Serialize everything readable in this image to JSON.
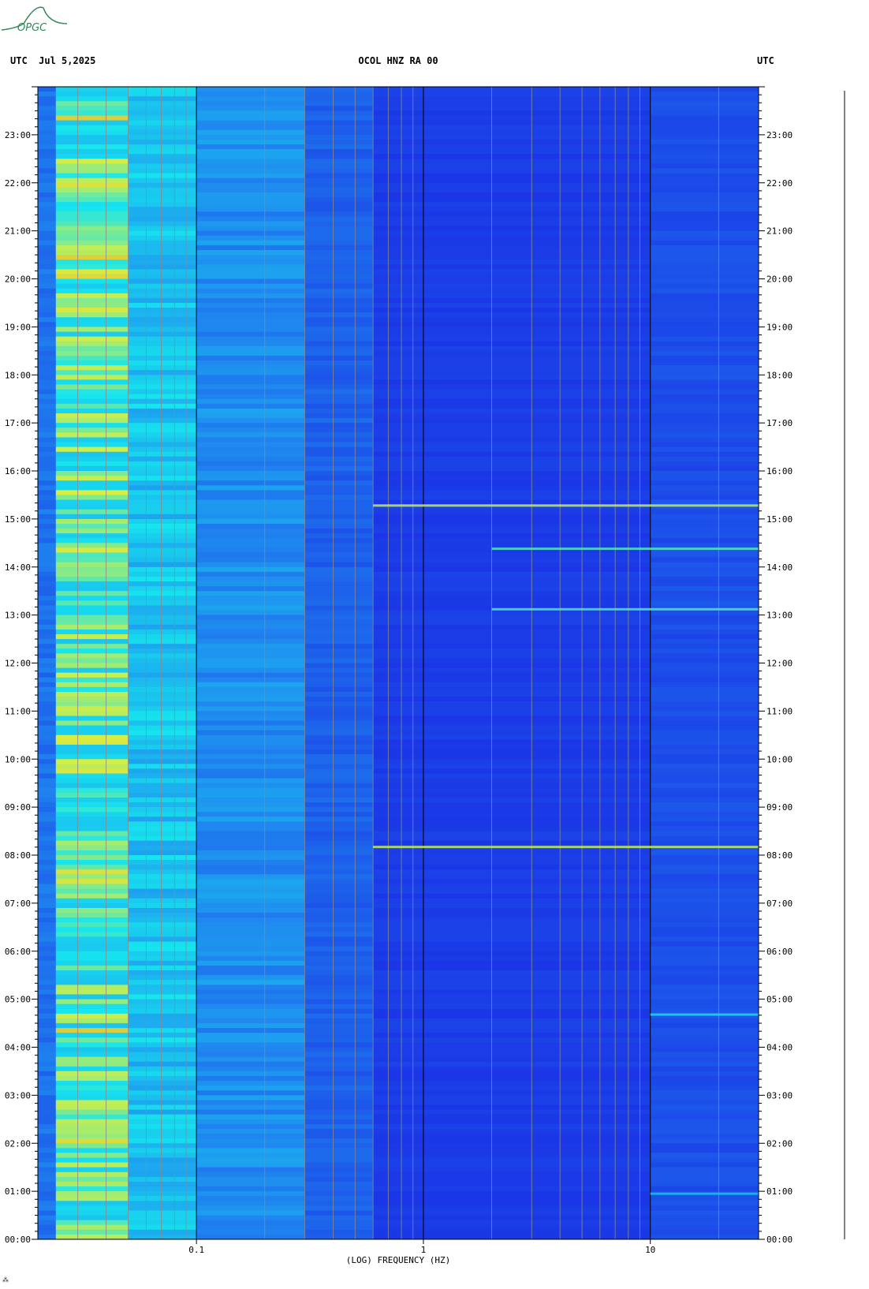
{
  "logo": {
    "text": "OPGC",
    "color": "#2e8b57"
  },
  "header": {
    "left": "UTC  Jul 5,2025",
    "center": "OCOL HNZ RA 00",
    "right": "UTC"
  },
  "colors": {
    "background_low": "#1a2fe6",
    "mid": "#1f88ef",
    "high": "#16e6ee",
    "peak": "#d8ee40",
    "hot": "#ee3a20"
  },
  "chart_data": {
    "type": "heatmap",
    "xlabel": "(LOG) FREQUENCY (HZ)",
    "x_scale": "log",
    "xlim_hz": [
      0.02,
      30
    ],
    "xticks": [
      {
        "value": 0.1,
        "label": "0.1"
      },
      {
        "value": 1,
        "label": "1"
      },
      {
        "value": 10,
        "label": "10"
      }
    ],
    "x_gridlines_hz": [
      0.02,
      0.03,
      0.04,
      0.05,
      0.06,
      0.07,
      0.08,
      0.09,
      0.1,
      0.2,
      0.3,
      0.4,
      0.5,
      0.6,
      0.7,
      0.8,
      0.9,
      1,
      2,
      3,
      4,
      5,
      6,
      7,
      8,
      9,
      10,
      20
    ],
    "y_range_hours": [
      0,
      24
    ],
    "yticks": [
      {
        "hour": 0,
        "label": "00:00"
      },
      {
        "hour": 1,
        "label": "01:00"
      },
      {
        "hour": 2,
        "label": "02:00"
      },
      {
        "hour": 3,
        "label": "03:00"
      },
      {
        "hour": 4,
        "label": "04:00"
      },
      {
        "hour": 5,
        "label": "05:00"
      },
      {
        "hour": 6,
        "label": "06:00"
      },
      {
        "hour": 7,
        "label": "07:00"
      },
      {
        "hour": 8,
        "label": "08:00"
      },
      {
        "hour": 9,
        "label": "09:00"
      },
      {
        "hour": 10,
        "label": "10:00"
      },
      {
        "hour": 11,
        "label": "11:00"
      },
      {
        "hour": 12,
        "label": "12:00"
      },
      {
        "hour": 13,
        "label": "13:00"
      },
      {
        "hour": 14,
        "label": "14:00"
      },
      {
        "hour": 15,
        "label": "15:00"
      },
      {
        "hour": 16,
        "label": "16:00"
      },
      {
        "hour": 17,
        "label": "17:00"
      },
      {
        "hour": 18,
        "label": "18:00"
      },
      {
        "hour": 19,
        "label": "19:00"
      },
      {
        "hour": 20,
        "label": "20:00"
      },
      {
        "hour": 21,
        "label": "21:00"
      },
      {
        "hour": 22,
        "label": "22:00"
      },
      {
        "hour": 23,
        "label": "23:00"
      }
    ],
    "bands": [
      {
        "f_start": 0.02,
        "f_end": 0.024,
        "level": 0.3
      },
      {
        "f_start": 0.024,
        "f_end": 0.05,
        "level": 0.78
      },
      {
        "f_start": 0.05,
        "f_end": 0.1,
        "level": 0.62
      },
      {
        "f_start": 0.1,
        "f_end": 0.3,
        "level": 0.42
      },
      {
        "f_start": 0.3,
        "f_end": 0.6,
        "level": 0.22
      },
      {
        "f_start": 0.6,
        "f_end": 10,
        "level": 0.06
      },
      {
        "f_start": 10,
        "f_end": 30,
        "level": 0.14
      }
    ],
    "events": [
      {
        "hour": 15.28,
        "f_start": 0.6,
        "f_end": 30,
        "level": 0.9
      },
      {
        "hour": 14.38,
        "f_start": 2,
        "f_end": 30,
        "level": 0.8
      },
      {
        "hour": 13.12,
        "f_start": 2,
        "f_end": 30,
        "level": 0.8
      },
      {
        "hour": 8.17,
        "f_start": 0.6,
        "f_end": 30,
        "level": 0.9
      },
      {
        "hour": 4.68,
        "f_start": 10,
        "f_end": 30,
        "level": 0.7
      },
      {
        "hour": 0.95,
        "f_start": 10,
        "f_end": 30,
        "level": 0.6
      }
    ],
    "grid": true
  }
}
